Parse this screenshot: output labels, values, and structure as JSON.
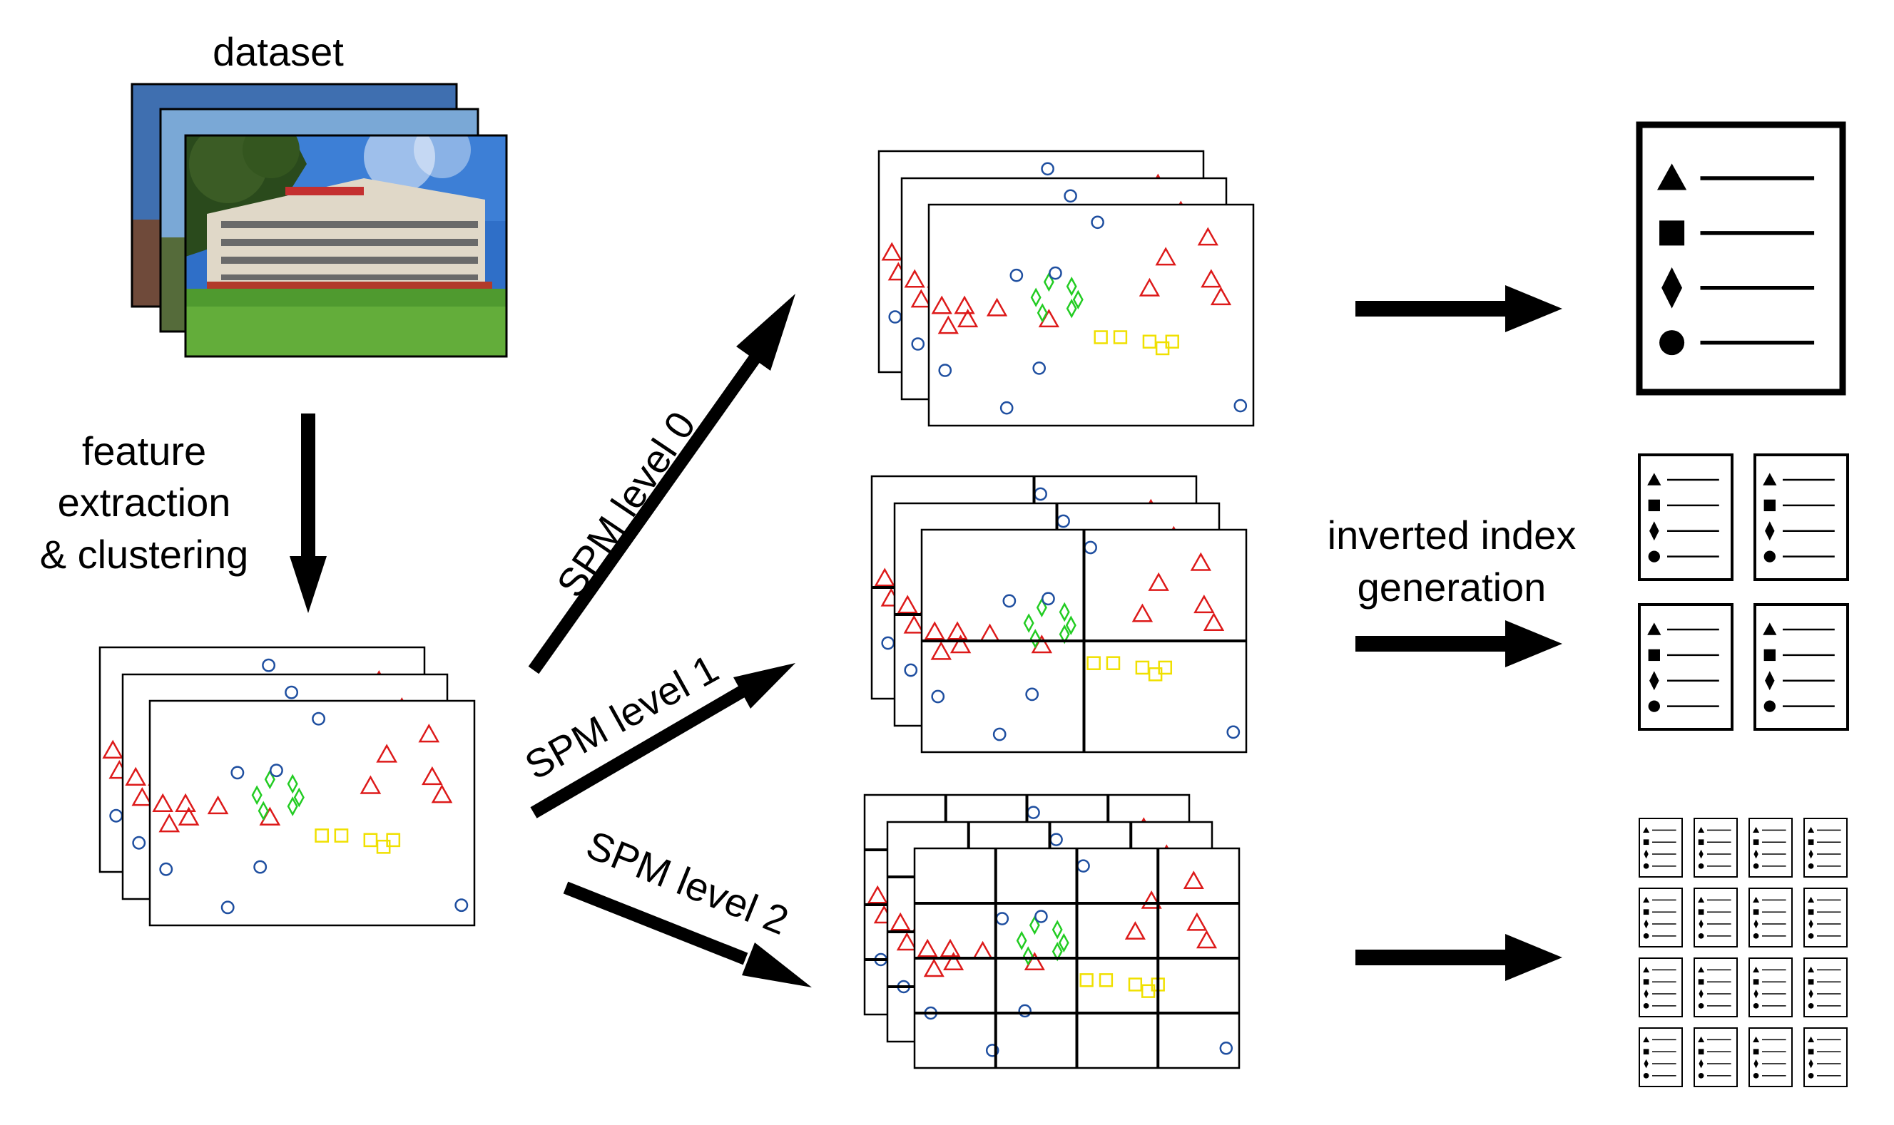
{
  "labels": {
    "dataset": "dataset",
    "feature_line1": "feature",
    "feature_line2": "extraction",
    "feature_line3": "& clustering",
    "spm0": "SPM level 0",
    "spm1": "SPM level 1",
    "spm2": "SPM level 2",
    "inv_line1": "inverted index",
    "inv_line2": "generation"
  },
  "colors": {
    "triangle": "#dd1a1a",
    "diamond": "#22cc22",
    "square": "#f0e000",
    "circle": "#1f4fa0"
  },
  "icons": [
    "triangle-icon",
    "square-icon",
    "diamond-icon",
    "circle-icon"
  ]
}
